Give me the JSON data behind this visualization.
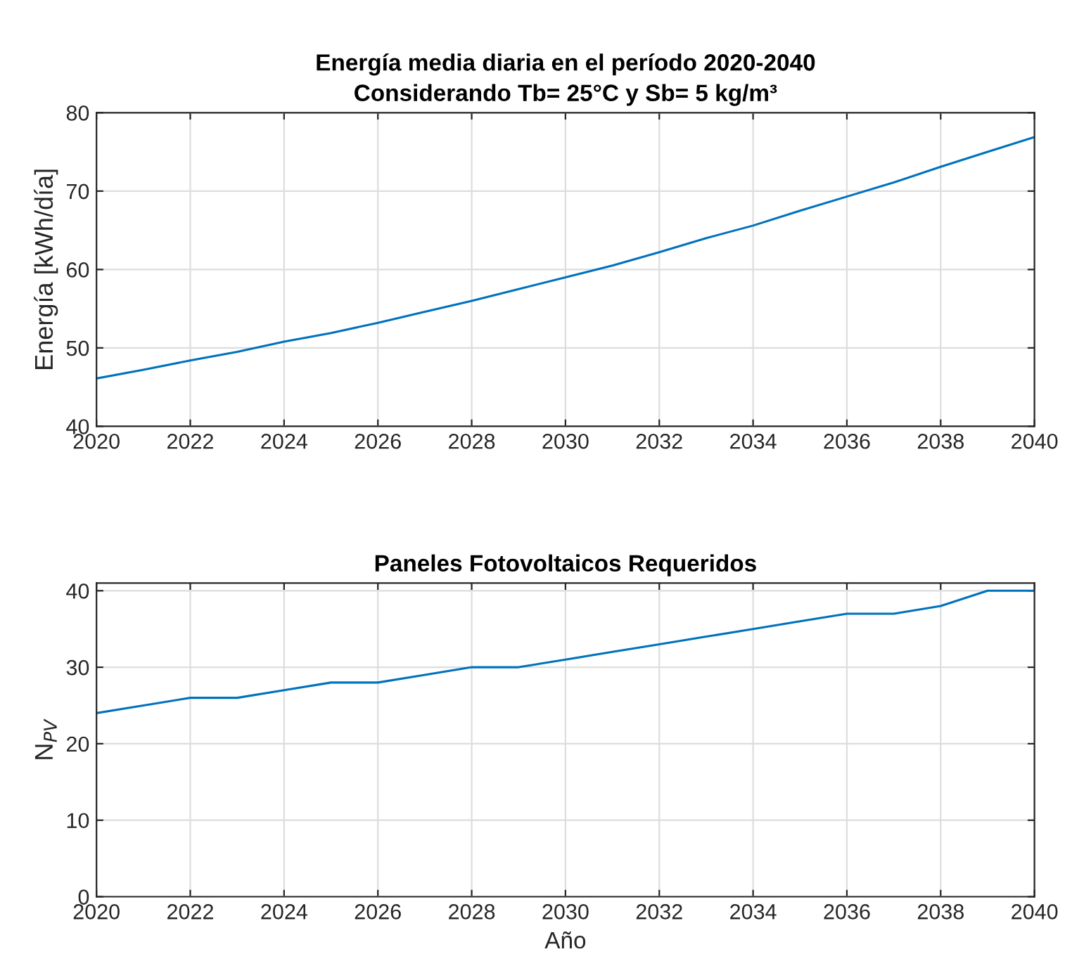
{
  "chart_data": [
    {
      "type": "line",
      "title": "Energía media diaria en el período 2020-2040\nConsiderando Tb= 25°C y Sb= 5 kg/m³",
      "ylabel": "Energía [kWh/día]",
      "x": [
        2020,
        2021,
        2022,
        2023,
        2024,
        2025,
        2026,
        2027,
        2028,
        2029,
        2030,
        2031,
        2032,
        2033,
        2034,
        2035,
        2036,
        2037,
        2038,
        2039,
        2040
      ],
      "series": [
        {
          "color": "#0072bd",
          "values": [
            46.1,
            47.2,
            48.4,
            49.5,
            50.8,
            51.9,
            53.2,
            54.6,
            56.0,
            57.5,
            59.0,
            60.5,
            62.2,
            64.0,
            65.6,
            67.5,
            69.3,
            71.1,
            73.1,
            75.0,
            76.9
          ]
        }
      ],
      "xlim": [
        2020,
        2040
      ],
      "xticks": [
        2020,
        2022,
        2024,
        2026,
        2028,
        2030,
        2032,
        2034,
        2036,
        2038,
        2040
      ],
      "ylim": [
        40,
        80
      ],
      "yticks": [
        40,
        50,
        60,
        70,
        80
      ],
      "grid": true
    },
    {
      "type": "line",
      "title": "Paneles Fotovoltaicos Requeridos",
      "xlabel": "Año",
      "ylabel": "N$_{PV}$",
      "x": [
        2020,
        2021,
        2022,
        2023,
        2024,
        2025,
        2026,
        2027,
        2028,
        2029,
        2030,
        2031,
        2032,
        2033,
        2034,
        2035,
        2036,
        2037,
        2038,
        2039,
        2040
      ],
      "series": [
        {
          "color": "#0072bd",
          "values": [
            24,
            25,
            26,
            26,
            27,
            28,
            28,
            29,
            30,
            30,
            31,
            32,
            33,
            34,
            35,
            36,
            37,
            37,
            38,
            40,
            40
          ]
        }
      ],
      "xlim": [
        2020,
        2040
      ],
      "xticks": [
        2020,
        2022,
        2024,
        2026,
        2028,
        2030,
        2032,
        2034,
        2036,
        2038,
        2040
      ],
      "ylim": [
        0,
        41
      ],
      "yticks": [
        0,
        10,
        20,
        30,
        40
      ],
      "grid": true
    }
  ]
}
